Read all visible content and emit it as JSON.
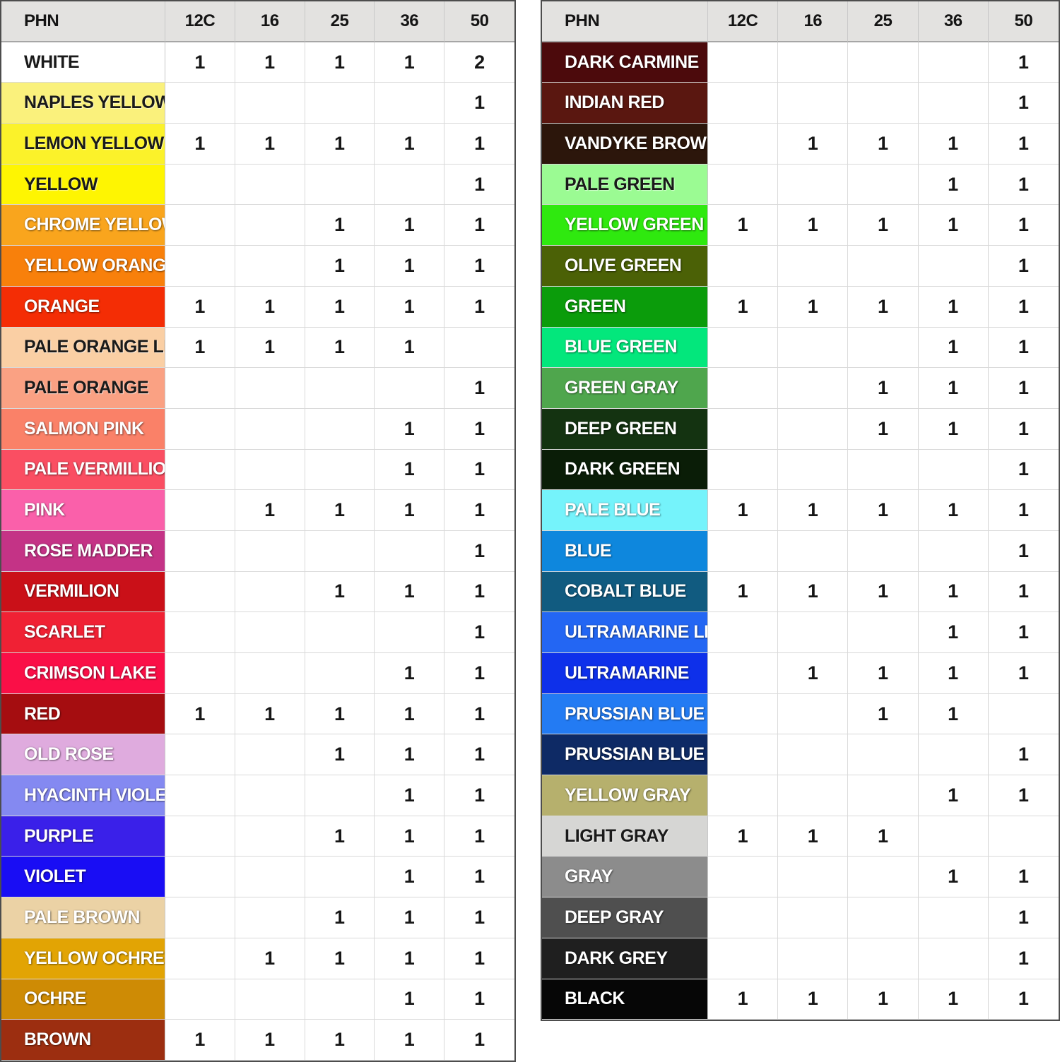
{
  "chart_data": [
    {
      "type": "table",
      "name": "left-color-count-table",
      "columns": [
        "PHN",
        "12C",
        "16",
        "25",
        "36",
        "50"
      ],
      "rows": [
        {
          "label": "WHITE",
          "swatch": "#FFFFFF",
          "label_color": "#1a1a1a",
          "values": [
            "1",
            "1",
            "1",
            "1",
            "2"
          ]
        },
        {
          "label": "NAPLES YELLOW",
          "swatch": "#FAF17C",
          "label_color": "#1a1a1a",
          "values": [
            "",
            "",
            "",
            "",
            "1"
          ]
        },
        {
          "label": "LEMON YELLOW",
          "swatch": "#FBF22A",
          "label_color": "#1a1a1a",
          "values": [
            "1",
            "1",
            "1",
            "1",
            "1"
          ]
        },
        {
          "label": "YELLOW",
          "swatch": "#FEF502",
          "label_color": "#1a1a1a",
          "values": [
            "",
            "",
            "",
            "",
            "1"
          ]
        },
        {
          "label": "CHROME YELLOW",
          "swatch": "#F9A51D",
          "label_color": "#ffffff",
          "values": [
            "",
            "",
            "1",
            "1",
            "1"
          ]
        },
        {
          "label": "YELLOW ORANGE",
          "swatch": "#F8800B",
          "label_color": "#ffffff",
          "values": [
            "",
            "",
            "1",
            "1",
            "1"
          ]
        },
        {
          "label": "ORANGE",
          "swatch": "#F42D05",
          "label_color": "#ffffff",
          "values": [
            "1",
            "1",
            "1",
            "1",
            "1"
          ]
        },
        {
          "label": "PALE ORANGE LIGHT",
          "swatch": "#FACFA4",
          "label_color": "#1a1a1a",
          "values": [
            "1",
            "1",
            "1",
            "1",
            ""
          ]
        },
        {
          "label": "PALE ORANGE",
          "swatch": "#FAA183",
          "label_color": "#1a1a1a",
          "values": [
            "",
            "",
            "",
            "",
            "1"
          ]
        },
        {
          "label": "SALMON PINK",
          "swatch": "#FA8168",
          "label_color": "#ffffff",
          "values": [
            "",
            "",
            "",
            "1",
            "1"
          ]
        },
        {
          "label": "PALE VERMILLION",
          "swatch": "#FA4E62",
          "label_color": "#ffffff",
          "values": [
            "",
            "",
            "",
            "1",
            "1"
          ]
        },
        {
          "label": "PINK",
          "swatch": "#FA60AA",
          "label_color": "#ffffff",
          "values": [
            "",
            "1",
            "1",
            "1",
            "1"
          ]
        },
        {
          "label": "ROSE MADDER",
          "swatch": "#C43386",
          "label_color": "#ffffff",
          "values": [
            "",
            "",
            "",
            "",
            "1"
          ]
        },
        {
          "label": "VERMILION",
          "swatch": "#CA1018",
          "label_color": "#ffffff",
          "values": [
            "",
            "",
            "1",
            "1",
            "1"
          ]
        },
        {
          "label": "SCARLET",
          "swatch": "#F02134",
          "label_color": "#ffffff",
          "values": [
            "",
            "",
            "",
            "",
            "1"
          ]
        },
        {
          "label": "CRIMSON LAKE",
          "swatch": "#FA0F47",
          "label_color": "#ffffff",
          "values": [
            "",
            "",
            "",
            "1",
            "1"
          ]
        },
        {
          "label": "RED",
          "swatch": "#A50D10",
          "label_color": "#ffffff",
          "values": [
            "1",
            "1",
            "1",
            "1",
            "1"
          ]
        },
        {
          "label": "OLD ROSE",
          "swatch": "#DFABDE",
          "label_color": "#ffffff",
          "values": [
            "",
            "",
            "1",
            "1",
            "1"
          ]
        },
        {
          "label": "HYACINTH VIOLET",
          "swatch": "#8489F1",
          "label_color": "#ffffff",
          "values": [
            "",
            "",
            "",
            "1",
            "1"
          ]
        },
        {
          "label": "PURPLE",
          "swatch": "#3A20E9",
          "label_color": "#ffffff",
          "values": [
            "",
            "",
            "1",
            "1",
            "1"
          ]
        },
        {
          "label": "VIOLET",
          "swatch": "#190DF4",
          "label_color": "#ffffff",
          "values": [
            "",
            "",
            "",
            "1",
            "1"
          ]
        },
        {
          "label": "PALE BROWN",
          "swatch": "#EBD2A5",
          "label_color": "#ffffff",
          "values": [
            "",
            "",
            "1",
            "1",
            "1"
          ]
        },
        {
          "label": "YELLOW OCHRE",
          "swatch": "#E2A404",
          "label_color": "#ffffff",
          "values": [
            "",
            "1",
            "1",
            "1",
            "1"
          ]
        },
        {
          "label": "OCHRE",
          "swatch": "#CE8B05",
          "label_color": "#ffffff",
          "values": [
            "",
            "",
            "",
            "1",
            "1"
          ]
        },
        {
          "label": "BROWN",
          "swatch": "#9C2E10",
          "label_color": "#ffffff",
          "values": [
            "1",
            "1",
            "1",
            "1",
            "1"
          ]
        }
      ]
    },
    {
      "type": "table",
      "name": "right-color-count-table",
      "columns": [
        "PHN",
        "12C",
        "16",
        "25",
        "36",
        "50"
      ],
      "rows": [
        {
          "label": "DARK CARMINE",
          "swatch": "#4C0A0C",
          "label_color": "#ffffff",
          "values": [
            "",
            "",
            "",
            "",
            "1"
          ]
        },
        {
          "label": "INDIAN RED",
          "swatch": "#5A1710",
          "label_color": "#ffffff",
          "values": [
            "",
            "",
            "",
            "",
            "1"
          ]
        },
        {
          "label": "VANDYKE BROWN",
          "swatch": "#2C160B",
          "label_color": "#ffffff",
          "values": [
            "",
            "1",
            "1",
            "1",
            "1"
          ]
        },
        {
          "label": "PALE GREEN",
          "swatch": "#9BFB93",
          "label_color": "#1a1a1a",
          "values": [
            "",
            "",
            "",
            "1",
            "1"
          ]
        },
        {
          "label": "YELLOW GREEN",
          "swatch": "#2FE90F",
          "label_color": "#ffffff",
          "values": [
            "1",
            "1",
            "1",
            "1",
            "1"
          ]
        },
        {
          "label": "OLIVE GREEN",
          "swatch": "#4B6106",
          "label_color": "#ffffff",
          "values": [
            "",
            "",
            "",
            "",
            "1"
          ]
        },
        {
          "label": "GREEN",
          "swatch": "#0B9C0B",
          "label_color": "#ffffff",
          "values": [
            "1",
            "1",
            "1",
            "1",
            "1"
          ]
        },
        {
          "label": "BLUE GREEN",
          "swatch": "#03E77C",
          "label_color": "#ffffff",
          "values": [
            "",
            "",
            "",
            "1",
            "1"
          ]
        },
        {
          "label": "GREEN GRAY",
          "swatch": "#4FA64D",
          "label_color": "#ffffff",
          "values": [
            "",
            "",
            "1",
            "1",
            "1"
          ]
        },
        {
          "label": "DEEP GREEN",
          "swatch": "#143311",
          "label_color": "#ffffff",
          "values": [
            "",
            "",
            "1",
            "1",
            "1"
          ]
        },
        {
          "label": "DARK GREEN",
          "swatch": "#0A1D07",
          "label_color": "#ffffff",
          "values": [
            "",
            "",
            "",
            "",
            "1"
          ]
        },
        {
          "label": "PALE BLUE",
          "swatch": "#75F3FB",
          "label_color": "#ffffff",
          "values": [
            "1",
            "1",
            "1",
            "1",
            "1"
          ]
        },
        {
          "label": "BLUE",
          "swatch": "#0E87DD",
          "label_color": "#ffffff",
          "values": [
            "",
            "",
            "",
            "",
            "1"
          ]
        },
        {
          "label": "COBALT BLUE",
          "swatch": "#115B80",
          "label_color": "#ffffff",
          "values": [
            "1",
            "1",
            "1",
            "1",
            "1"
          ]
        },
        {
          "label": "ULTRAMARINE LIGHT",
          "swatch": "#2366F3",
          "label_color": "#ffffff",
          "values": [
            "",
            "",
            "",
            "1",
            "1"
          ]
        },
        {
          "label": "ULTRAMARINE",
          "swatch": "#0E30EA",
          "label_color": "#ffffff",
          "values": [
            "",
            "1",
            "1",
            "1",
            "1"
          ]
        },
        {
          "label": "PRUSSIAN BLUE LIGHT",
          "swatch": "#237BF3",
          "label_color": "#ffffff",
          "values": [
            "",
            "",
            "1",
            "1",
            ""
          ]
        },
        {
          "label": "PRUSSIAN BLUE",
          "swatch": "#0E2A65",
          "label_color": "#ffffff",
          "values": [
            "",
            "",
            "",
            "",
            "1"
          ]
        },
        {
          "label": "YELLOW GRAY",
          "swatch": "#B6B06D",
          "label_color": "#ffffff",
          "values": [
            "",
            "",
            "",
            "1",
            "1"
          ]
        },
        {
          "label": "LIGHT GRAY",
          "swatch": "#D6D6D4",
          "label_color": "#1a1a1a",
          "values": [
            "1",
            "1",
            "1",
            "",
            ""
          ]
        },
        {
          "label": "GRAY",
          "swatch": "#8C8C8C",
          "label_color": "#ffffff",
          "values": [
            "",
            "",
            "",
            "1",
            "1"
          ]
        },
        {
          "label": "DEEP GRAY",
          "swatch": "#4F4F4F",
          "label_color": "#ffffff",
          "values": [
            "",
            "",
            "",
            "",
            "1"
          ]
        },
        {
          "label": "DARK GREY",
          "swatch": "#1F1F1F",
          "label_color": "#ffffff",
          "values": [
            "",
            "",
            "",
            "",
            "1"
          ]
        },
        {
          "label": "BLACK",
          "swatch": "#060606",
          "label_color": "#ffffff",
          "values": [
            "1",
            "1",
            "1",
            "1",
            "1"
          ]
        }
      ]
    }
  ],
  "styles": {
    "header_bg": "#E3E2E0",
    "header_text": "#141414",
    "grid_line": "#D9D9D9",
    "outer_border": "#4D4D4D",
    "count_text": "#161616"
  }
}
